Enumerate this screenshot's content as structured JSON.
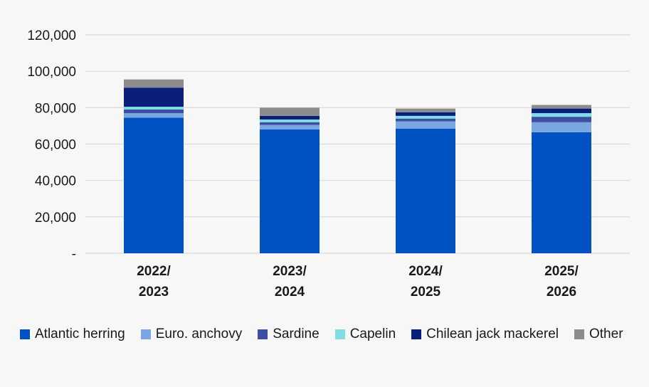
{
  "chart_data": {
    "type": "bar",
    "stacked": true,
    "categories": [
      [
        "2022/",
        "2023"
      ],
      [
        "2023/",
        "2024"
      ],
      [
        "2024/",
        "2025"
      ],
      [
        "2025/",
        "2026"
      ]
    ],
    "series": [
      {
        "name": "Atlantic herring",
        "color": "#0052c2",
        "values": [
          74500,
          68000,
          68500,
          66500
        ]
      },
      {
        "name": "Euro. anchovy",
        "color": "#7aa6e2",
        "values": [
          2500,
          2500,
          4000,
          5500
        ]
      },
      {
        "name": "Sardine",
        "color": "#3c4fa3",
        "values": [
          2000,
          1500,
          1500,
          3000
        ]
      },
      {
        "name": "Capelin",
        "color": "#7fdde3",
        "values": [
          1500,
          1500,
          1500,
          2000
        ]
      },
      {
        "name": "Chilean jack mackerel",
        "color": "#0a1f7a",
        "values": [
          10500,
          2000,
          2000,
          2500
        ]
      },
      {
        "name": "Other",
        "color": "#8c8c8c",
        "values": [
          4500,
          4500,
          2000,
          2000
        ]
      }
    ],
    "ylim": [
      0,
      120000
    ],
    "yticks": [
      0,
      20000,
      40000,
      60000,
      80000,
      100000,
      120000
    ],
    "ytick_labels": [
      "-",
      "20,000",
      "40,000",
      "60,000",
      "80,000",
      "100,000",
      "120,000"
    ],
    "grid": true,
    "legend_position": "bottom"
  }
}
